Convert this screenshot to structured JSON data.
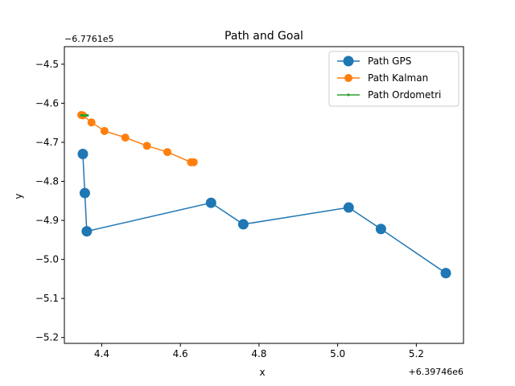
{
  "chart_data": {
    "type": "line",
    "title": "Path and Goal",
    "xlabel": "x",
    "ylabel": "y",
    "x_offset_label": "+6.39746e6",
    "y_offset_label": "−6.7761e5",
    "xlim": [
      4.305,
      5.32
    ],
    "ylim": [
      -5.215,
      -4.455
    ],
    "x_ticks": [
      4.4,
      4.6,
      4.8,
      5.0,
      5.2
    ],
    "x_tick_labels": [
      "4.4",
      "4.6",
      "4.8",
      "5.0",
      "5.2"
    ],
    "y_ticks": [
      -4.5,
      -4.6,
      -4.7,
      -4.8,
      -4.9,
      -5.0,
      -5.1,
      -5.2
    ],
    "y_tick_labels": [
      "−4.5",
      "−4.6",
      "−4.7",
      "−4.8",
      "−4.9",
      "−5.0",
      "−5.1",
      "−5.2"
    ],
    "grid": false,
    "legend_position": "top-right",
    "series": [
      {
        "name": "Path GPS",
        "color": "#1f77b4",
        "marker": "large-circle",
        "x": [
          4.352,
          4.357,
          4.362,
          4.678,
          4.76,
          5.028,
          5.11,
          5.275
        ],
        "y": [
          -4.73,
          -4.83,
          -4.928,
          -4.855,
          -4.91,
          -4.867,
          -4.922,
          -5.035
        ]
      },
      {
        "name": "Path Kalman",
        "color": "#ff7f0e",
        "marker": "circle",
        "x": [
          4.348,
          4.352,
          4.374,
          4.407,
          4.46,
          4.515,
          4.567,
          4.627,
          4.634
        ],
        "y": [
          -4.63,
          -4.631,
          -4.649,
          -4.671,
          -4.688,
          -4.709,
          -4.725,
          -4.751,
          -4.751
        ]
      },
      {
        "name": "Path Ordometri",
        "color": "#2ca02c",
        "marker": "point",
        "x": [
          4.348,
          4.352,
          4.356,
          4.36,
          4.364
        ],
        "y": [
          -4.631,
          -4.631,
          -4.631,
          -4.631,
          -4.631
        ]
      }
    ]
  }
}
